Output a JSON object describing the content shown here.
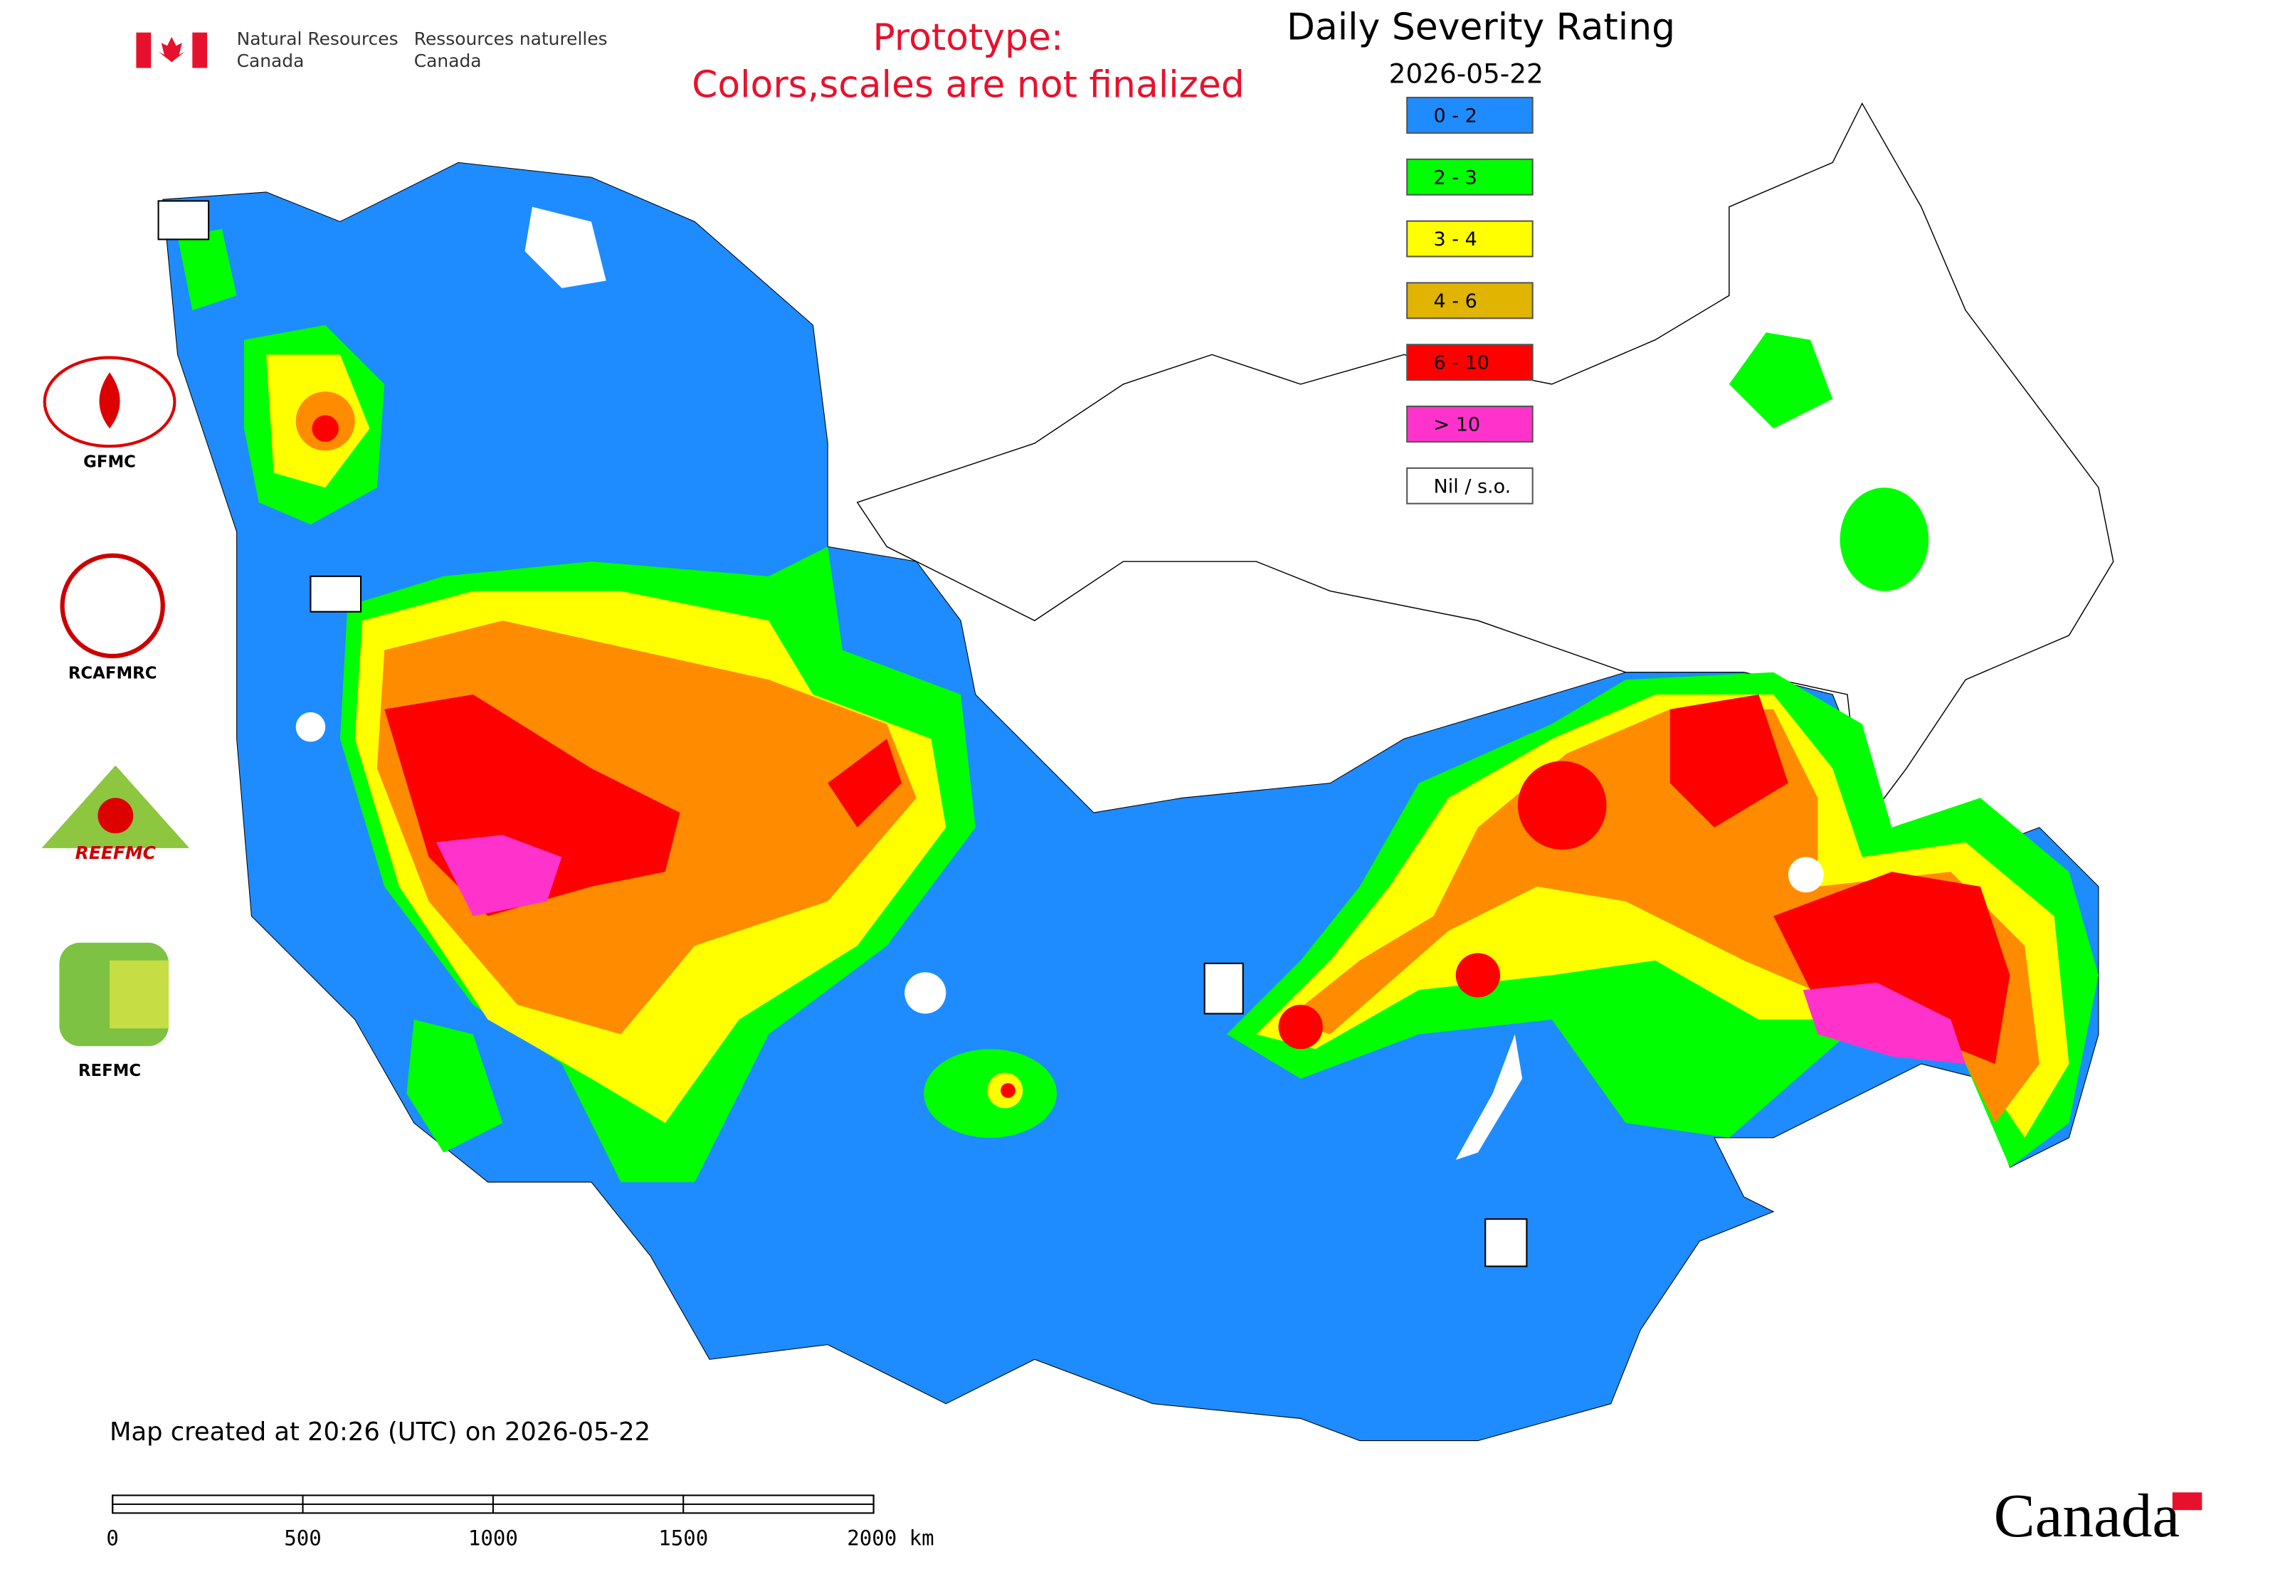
{
  "header": {
    "org_en_1": "Natural Resources",
    "org_en_2": "Canada",
    "org_fr_1": "Ressources naturelles",
    "org_fr_2": "Canada"
  },
  "notice": [
    "Prototype:",
    "Colors,scales are not finalized"
  ],
  "title": "Daily Severity Rating",
  "date": "2026-05-22",
  "legend": [
    {
      "label": "0 - 2",
      "color": "#1e8cff"
    },
    {
      "label": "2 - 3",
      "color": "#00ff00"
    },
    {
      "label": "3 - 4",
      "color": "#ffff00"
    },
    {
      "label": "4 - 6",
      "color": "#e0b400"
    },
    {
      "label": "6 - 10",
      "color": "#ff0000"
    },
    {
      "label": "> 10",
      "color": "#ff33cc"
    },
    {
      "label": "Nil / s.o.",
      "color": "#ffffff"
    }
  ],
  "logos": [
    "GFMC",
    "RCAFMRC",
    "REEFMC",
    "REFMC"
  ],
  "footer": "Map created at 20:26 (UTC) on 2026-05-22",
  "scale_bar": [
    "0",
    "500",
    "1000",
    "1500",
    "2000 km"
  ],
  "wordmark": "Canada"
}
